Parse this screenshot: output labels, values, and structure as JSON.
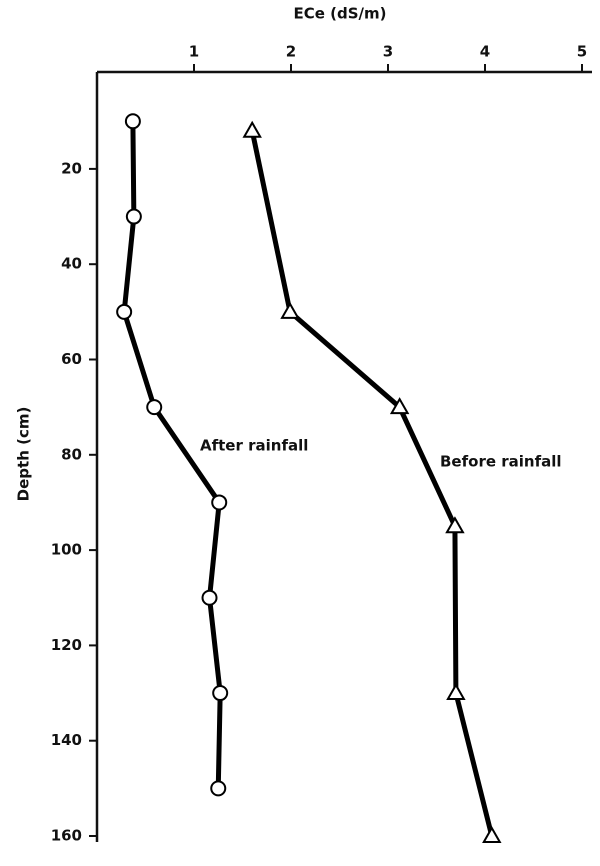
{
  "chart_data": {
    "type": "line",
    "x_label": "ECe (dS/m)",
    "y_label": "Depth (cm)",
    "xlim": [
      0,
      5
    ],
    "xticks": [
      1,
      2,
      3,
      4,
      5
    ],
    "ylim": [
      0,
      160
    ],
    "yticks": [
      20,
      40,
      60,
      80,
      100,
      120,
      140,
      160
    ],
    "y_inverted": true,
    "x_axis_position": "top",
    "series": [
      {
        "name": "After rainfall",
        "color": "#000000",
        "marker": "circle",
        "x": [
          0.37,
          0.38,
          0.28,
          0.59,
          1.26,
          1.16,
          1.27,
          1.25
        ],
        "y": [
          10,
          30,
          50,
          70,
          90,
          110,
          130,
          150
        ]
      },
      {
        "name": "Before rainfall",
        "color": "#000000",
        "marker": "triangle",
        "x": [
          1.6,
          1.99,
          3.12,
          3.69,
          3.7,
          4.07
        ],
        "y": [
          12,
          50,
          70,
          95,
          130,
          160
        ]
      }
    ]
  }
}
